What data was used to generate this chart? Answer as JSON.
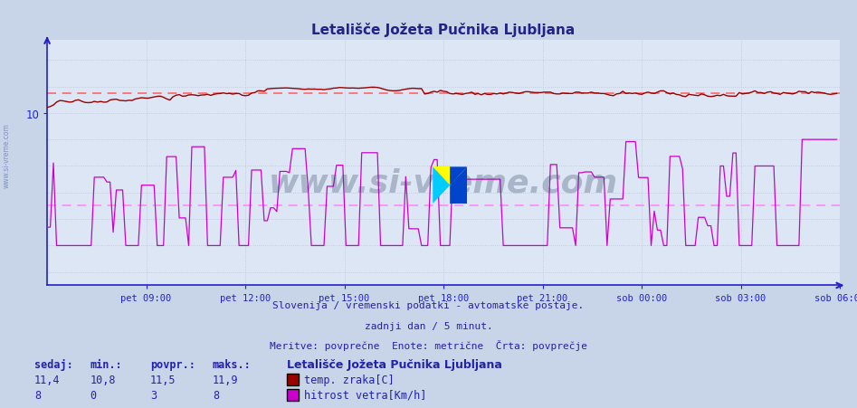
{
  "title": "Letališče Jožeta Pučnika Ljubljana",
  "subtitle1": "Slovenija / vremenski podatki - avtomatske postaje.",
  "subtitle2": "zadnji dan / 5 minut.",
  "subtitle3": "Meritve: povprečne  Enote: metrične  Črta: povprečje",
  "xlabel_ticks": [
    "pet 09:00",
    "pet 12:00",
    "pet 15:00",
    "pet 18:00",
    "pet 21:00",
    "sob 00:00",
    "sob 03:00",
    "sob 06:00"
  ],
  "ylim": [
    -3.0,
    15.5
  ],
  "xlim_max": 252,
  "temp_avg": 11.5,
  "wind_avg": 3.0,
  "temp_color": "#990000",
  "wind_color": "#cc00cc",
  "avg_line_color_temp": "#ff6666",
  "avg_line_color_wind": "#ff88ff",
  "background_color": "#c8d4e8",
  "plot_bg_color": "#dce6f4",
  "grid_color": "#b8c4d8",
  "axis_color": "#2222cc",
  "text_color": "#2222aa",
  "title_color": "#222288",
  "legend_station": "Letališče Jožeta Pučnika Ljubljana",
  "legend_temp_label": "temp. zraka[C]",
  "legend_wind_label": "hitrost vetra[Km/h]",
  "stats_headers": [
    "sedaj:",
    "min.:",
    "povpr.:",
    "maks.:"
  ],
  "stats_temp": [
    "11,4",
    "10,8",
    "11,5",
    "11,9"
  ],
  "stats_wind": [
    "8",
    "0",
    "3",
    "8"
  ],
  "watermark": "www.si-vreme.com",
  "n_points": 252
}
